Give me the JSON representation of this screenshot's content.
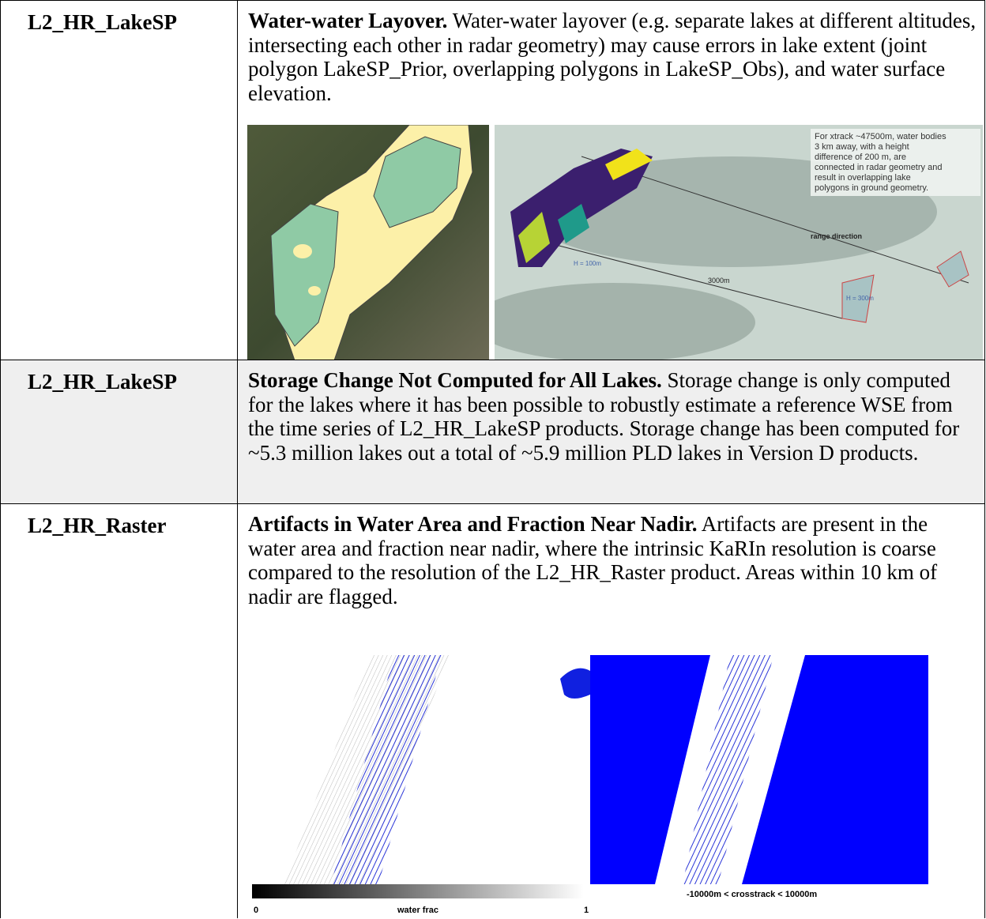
{
  "table": {
    "rows": [
      {
        "product": "L2_HR_LakeSP",
        "title": "Water-water Layover.",
        "text": " Water-water layover (e.g. separate lakes at different altitudes, intersecting each other in radar geometry) may cause errors in lake extent (joint polygon LakeSP_Prior, overlapping polygons in LakeSP_Obs), and water surface elevation.",
        "figure": {
          "annotation": "For xtrack ~47500m, water bodies 3 km away, with a height difference of 200 m, are connected  in radar geometry and result in overlapping lake polygons in ground geometry.",
          "range_label": "range direction",
          "h1_label": "H = 100m",
          "distance_label": "3000m",
          "h2_label": "H = 300m"
        }
      },
      {
        "product": "L2_HR_LakeSP",
        "title": "Storage Change Not Computed for All Lakes.",
        "text": " Storage change is only computed for the lakes where it has been possible to robustly estimate a reference WSE from the time series of L2_HR_LakeSP products. Storage change has been computed for ~5.3 million lakes out a total of ~5.9 million PLD lakes in Version D products."
      },
      {
        "product": "L2_HR_Raster",
        "title": "Artifacts in Water Area and Fraction Near Nadir.",
        "text": " Artifacts are present in the water area and fraction near nadir, where the intrinsic KaRIn resolution is coarse compared to the resolution of the L2_HR_Raster product.  Areas within 10 km of nadir are flagged.",
        "figure": {
          "colorbar_min": "0",
          "colorbar_label": "water frac",
          "colorbar_max": "1",
          "crosstrack_label": "-10000m < crosstrack < 10000m"
        }
      }
    ]
  }
}
